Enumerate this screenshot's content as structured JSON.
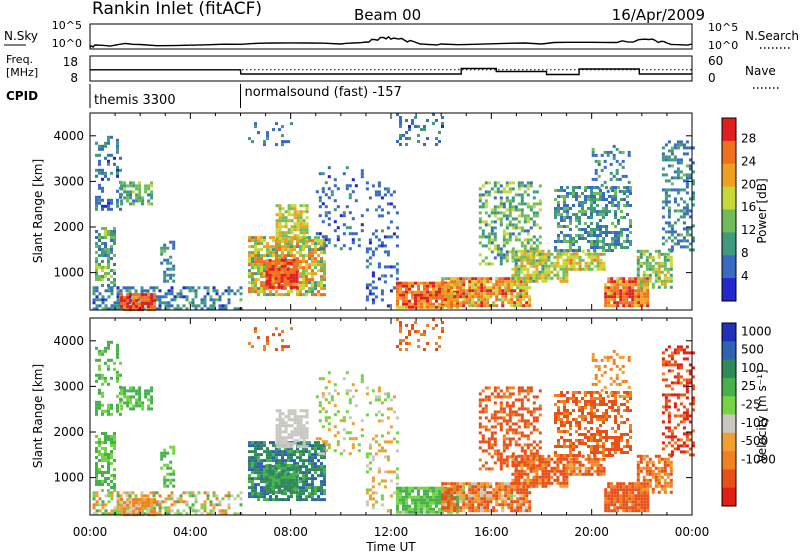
{
  "header": {
    "station": "Rankin Inlet (fitACF)",
    "beam": "Beam 00",
    "date": "16/Apr/2009"
  },
  "noise_panel": {
    "left_label": "N.Sky",
    "left_ticks": [
      "10^5",
      "10^0"
    ],
    "right_ticks": [
      "10^5",
      "10^0"
    ],
    "right_label": "N.Search"
  },
  "freq_panel": {
    "left_label_line1": "Freq.",
    "left_label_line2": "[MHz]",
    "left_ticks": [
      "18",
      "8"
    ],
    "right_ticks": [
      "60",
      "0"
    ],
    "right_label": "Nave"
  },
  "cpid": {
    "label": "CPID",
    "segments": [
      {
        "name": "themis 3300",
        "start_hour": 0
      },
      {
        "name": "normalsound (fast) -157",
        "start_hour": 6
      }
    ]
  },
  "power_panel": {
    "ylabel": "Slant Range [km]",
    "yticks": [
      "4000",
      "3000",
      "2000",
      "1000"
    ],
    "colorbar_label": "Power [dB]",
    "colorbar_ticks": [
      "28",
      "24",
      "20",
      "16",
      "12",
      "8",
      "4"
    ],
    "colors": [
      "#2228cc",
      "#3a6bc2",
      "#3f9a7e",
      "#6fbd58",
      "#c6d836",
      "#f0a020",
      "#f07020",
      "#e02020"
    ]
  },
  "velocity_panel": {
    "ylabel": "Slant Range [km]",
    "yticks": [
      "4000",
      "3000",
      "2000",
      "1000"
    ],
    "colorbar_label": "Velocity [m s⁻¹]",
    "colorbar_ticks": [
      "1000",
      "500",
      "100",
      "25",
      "-25",
      "-100",
      "-500",
      "-1000"
    ],
    "colors": [
      "#2030b8",
      "#2f62b0",
      "#2f8a5a",
      "#46b04a",
      "#74d444",
      "#c8c8c0",
      "#f0a030",
      "#f08020",
      "#e85018",
      "#e02010"
    ]
  },
  "x_axis": {
    "ticks": [
      "00:00",
      "04:00",
      "08:00",
      "12:00",
      "16:00",
      "20:00",
      "00:00"
    ],
    "label": "Time UT"
  },
  "chart_data": {
    "type": "heatmap",
    "title": "Rankin Inlet (fitACF)  Beam 00  16/Apr/2009",
    "x_unit": "hours UT",
    "xlim": [
      0,
      24
    ],
    "ylabel": "Slant Range [km]",
    "ylim": [
      180,
      4500
    ],
    "power_range_dB": [
      0,
      30
    ],
    "velocity_range_ms": [
      -1000,
      1000
    ],
    "noise_sky_profile": [
      [
        0,
        0.3
      ],
      [
        0.2,
        0.8
      ],
      [
        2,
        0.9
      ],
      [
        6,
        0.95
      ],
      [
        10,
        1.0
      ],
      [
        11,
        1.4
      ],
      [
        11.7,
        2.3
      ],
      [
        12.3,
        2.0
      ],
      [
        13,
        1.3
      ],
      [
        14,
        1.0
      ],
      [
        18,
        1.0
      ],
      [
        21,
        1.3
      ],
      [
        22.3,
        1.9
      ],
      [
        23,
        1.2
      ],
      [
        24,
        1.0
      ]
    ],
    "frequency_MHz_profile": [
      [
        0,
        12.5
      ],
      [
        0.1,
        12.5
      ],
      [
        6,
        12.5
      ],
      [
        6.01,
        10.8
      ],
      [
        12,
        10.8
      ],
      [
        14.8,
        10.8
      ],
      [
        14.8,
        13.0
      ],
      [
        16.2,
        13.0
      ],
      [
        16.2,
        11.8
      ],
      [
        18.2,
        11.8
      ],
      [
        18.2,
        10.6
      ],
      [
        19.5,
        10.6
      ],
      [
        19.5,
        12.8
      ],
      [
        21.9,
        12.8
      ],
      [
        21.9,
        10.8
      ],
      [
        24,
        10.8
      ]
    ],
    "nave_threshold": 27,
    "scatter_regions": [
      {
        "t0": 0.1,
        "t1": 6.0,
        "r0": 180,
        "r1": 700,
        "density": 0.5,
        "power": [
          3,
          12
        ],
        "velocity": [
          -150,
          150
        ]
      },
      {
        "t0": 1.2,
        "t1": 2.6,
        "r0": 200,
        "r1": 550,
        "density": 0.95,
        "power": [
          22,
          30
        ],
        "velocity": [
          -200,
          40
        ]
      },
      {
        "t0": 0.2,
        "t1": 1.0,
        "r0": 700,
        "r1": 2000,
        "density": 0.55,
        "power": [
          6,
          16
        ],
        "velocity": [
          30,
          200
        ]
      },
      {
        "t0": 0.2,
        "t1": 1.2,
        "r0": 2400,
        "r1": 4000,
        "density": 0.3,
        "power": [
          3,
          10
        ],
        "velocity": [
          50,
          200
        ]
      },
      {
        "t0": 1.2,
        "t1": 2.5,
        "r0": 2500,
        "r1": 3000,
        "density": 0.55,
        "power": [
          6,
          16
        ],
        "velocity": [
          50,
          200
        ]
      },
      {
        "t0": 2.8,
        "t1": 3.3,
        "r0": 800,
        "r1": 1700,
        "density": 0.4,
        "power": [
          4,
          14
        ],
        "velocity": [
          40,
          200
        ]
      },
      {
        "t0": 6.3,
        "t1": 9.3,
        "r0": 500,
        "r1": 1800,
        "density": 0.75,
        "power": [
          10,
          26
        ],
        "velocity": [
          100,
          700
        ]
      },
      {
        "t0": 7.0,
        "t1": 8.3,
        "r0": 700,
        "r1": 1300,
        "density": 0.95,
        "power": [
          22,
          29
        ],
        "velocity": [
          100,
          400
        ]
      },
      {
        "t0": 7.4,
        "t1": 8.6,
        "r0": 1700,
        "r1": 2500,
        "density": 0.65,
        "power": [
          12,
          22
        ],
        "velocity": [
          -25,
          25
        ]
      },
      {
        "t0": 6.3,
        "t1": 8.0,
        "r0": 3800,
        "r1": 4300,
        "density": 0.25,
        "power": [
          4,
          10
        ],
        "velocity": [
          -300,
          -100
        ]
      },
      {
        "t0": 9.0,
        "t1": 11.0,
        "r0": 1500,
        "r1": 3400,
        "density": 0.15,
        "power": [
          3,
          8
        ],
        "velocity": [
          -100,
          100
        ]
      },
      {
        "t0": 11.0,
        "t1": 12.2,
        "r0": 300,
        "r1": 3000,
        "density": 0.18,
        "power": [
          3,
          8
        ],
        "velocity": [
          -100,
          100
        ]
      },
      {
        "t0": 12.2,
        "t1": 14.6,
        "r0": 250,
        "r1": 800,
        "density": 0.9,
        "power": [
          18,
          30
        ],
        "velocity": [
          20,
          200
        ]
      },
      {
        "t0": 14.0,
        "t1": 17.5,
        "r0": 250,
        "r1": 900,
        "density": 0.85,
        "power": [
          14,
          28
        ],
        "velocity": [
          -400,
          30
        ]
      },
      {
        "t0": 12.2,
        "t1": 14.0,
        "r0": 3800,
        "r1": 4500,
        "density": 0.25,
        "power": [
          3,
          10
        ],
        "velocity": [
          -300,
          -100
        ]
      },
      {
        "t0": 15.5,
        "t1": 18.0,
        "r0": 1200,
        "r1": 3000,
        "density": 0.45,
        "power": [
          6,
          18
        ],
        "velocity": [
          -500,
          -100
        ]
      },
      {
        "t0": 16.8,
        "t1": 19.0,
        "r0": 800,
        "r1": 1500,
        "density": 0.75,
        "power": [
          10,
          22
        ],
        "velocity": [
          -500,
          -60
        ]
      },
      {
        "t0": 19.0,
        "t1": 20.5,
        "r0": 1100,
        "r1": 1500,
        "density": 0.8,
        "power": [
          12,
          24
        ],
        "velocity": [
          -300,
          -50
        ]
      },
      {
        "t0": 18.5,
        "t1": 21.5,
        "r0": 1500,
        "r1": 2900,
        "density": 0.5,
        "power": [
          4,
          14
        ],
        "velocity": [
          -400,
          -100
        ]
      },
      {
        "t0": 20.5,
        "t1": 22.2,
        "r0": 300,
        "r1": 900,
        "density": 0.9,
        "power": [
          18,
          30
        ],
        "velocity": [
          -500,
          -100
        ]
      },
      {
        "t0": 21.8,
        "t1": 23.2,
        "r0": 700,
        "r1": 1500,
        "density": 0.6,
        "power": [
          8,
          20
        ],
        "velocity": [
          -300,
          -40
        ]
      },
      {
        "t0": 22.8,
        "t1": 24.0,
        "r0": 1500,
        "r1": 3900,
        "density": 0.4,
        "power": [
          4,
          12
        ],
        "velocity": [
          -800,
          -100
        ]
      },
      {
        "t0": 20.0,
        "t1": 21.5,
        "r0": 2800,
        "r1": 3800,
        "density": 0.2,
        "power": [
          4,
          12
        ],
        "velocity": [
          -200,
          -25
        ]
      }
    ]
  }
}
